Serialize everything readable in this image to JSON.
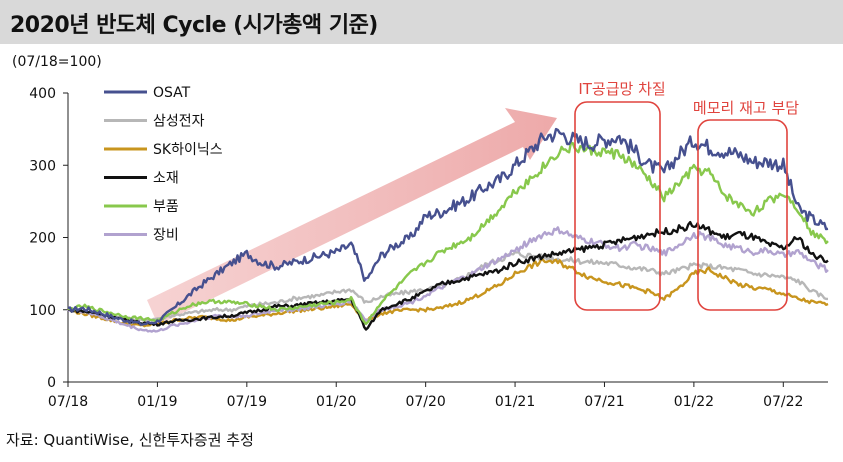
{
  "page": {
    "title": "2020년 반도체 Cycle (시가총액 기준)",
    "unit": "(07/18=100)",
    "source": "자료: QuantiWise, 신한투자증권 추정"
  },
  "chart_data": {
    "type": "line",
    "x_ticks": [
      "07/18",
      "01/19",
      "07/19",
      "01/20",
      "07/20",
      "01/21",
      "07/21",
      "01/22",
      "07/22"
    ],
    "x_range": [
      "2018-07",
      "2022-10"
    ],
    "ylim": [
      0,
      400
    ],
    "y_ticks": [
      0,
      100,
      200,
      300,
      400
    ],
    "grid": false,
    "legend_position": "top-left",
    "x": [
      "2018-07",
      "2018-08",
      "2018-09",
      "2018-10",
      "2018-11",
      "2018-12",
      "2019-01",
      "2019-02",
      "2019-03",
      "2019-04",
      "2019-05",
      "2019-06",
      "2019-07",
      "2019-08",
      "2019-09",
      "2019-10",
      "2019-11",
      "2019-12",
      "2020-01",
      "2020-02",
      "2020-03",
      "2020-04",
      "2020-05",
      "2020-06",
      "2020-07",
      "2020-08",
      "2020-09",
      "2020-10",
      "2020-11",
      "2020-12",
      "2021-01",
      "2021-02",
      "2021-03",
      "2021-04",
      "2021-05",
      "2021-06",
      "2021-07",
      "2021-08",
      "2021-09",
      "2021-10",
      "2021-11",
      "2021-12",
      "2022-01",
      "2022-02",
      "2022-03",
      "2022-04",
      "2022-05",
      "2022-06",
      "2022-07",
      "2022-08",
      "2022-09",
      "2022-10"
    ],
    "series": [
      {
        "name": "OSAT",
        "color": "#46508f",
        "values": [
          100,
          102,
          97,
          90,
          85,
          80,
          84,
          100,
          118,
          135,
          150,
          165,
          178,
          165,
          160,
          165,
          170,
          175,
          180,
          190,
          140,
          175,
          190,
          200,
          230,
          235,
          245,
          255,
          270,
          280,
          300,
          320,
          340,
          345,
          335,
          330,
          335,
          340,
          320,
          300,
          290,
          315,
          335,
          325,
          320,
          315,
          305,
          305,
          300,
          240,
          225,
          212
        ]
      },
      {
        "name": "삼성전자",
        "color": "#b7b7b7",
        "values": [
          100,
          98,
          95,
          90,
          88,
          85,
          88,
          92,
          95,
          98,
          100,
          100,
          105,
          108,
          110,
          115,
          118,
          120,
          125,
          128,
          110,
          118,
          122,
          125,
          128,
          132,
          140,
          150,
          162,
          170,
          178,
          175,
          172,
          170,
          168,
          166,
          165,
          162,
          158,
          155,
          150,
          155,
          162,
          160,
          158,
          155,
          150,
          148,
          145,
          140,
          125,
          115
        ]
      },
      {
        "name": "SK하이닉스",
        "color": "#c8951e",
        "values": [
          100,
          95,
          90,
          85,
          80,
          78,
          80,
          85,
          88,
          90,
          88,
          85,
          90,
          92,
          95,
          98,
          100,
          102,
          105,
          108,
          85,
          95,
          98,
          100,
          100,
          102,
          108,
          115,
          125,
          135,
          150,
          160,
          168,
          165,
          155,
          145,
          140,
          135,
          130,
          125,
          115,
          130,
          150,
          155,
          145,
          135,
          130,
          128,
          122,
          115,
          110,
          108
        ]
      },
      {
        "name": "소재",
        "color": "#111111",
        "values": [
          100,
          98,
          95,
          90,
          85,
          82,
          80,
          84,
          86,
          88,
          90,
          92,
          96,
          100,
          105,
          105,
          108,
          110,
          112,
          115,
          72,
          100,
          108,
          115,
          125,
          135,
          140,
          145,
          150,
          155,
          165,
          170,
          175,
          178,
          182,
          186,
          190,
          195,
          200,
          205,
          208,
          212,
          218,
          210,
          200,
          205,
          200,
          190,
          185,
          200,
          175,
          168
        ]
      },
      {
        "name": "부품",
        "color": "#88c84c",
        "values": [
          100,
          105,
          100,
          95,
          90,
          88,
          85,
          95,
          105,
          110,
          112,
          110,
          108,
          105,
          100,
          102,
          105,
          108,
          110,
          115,
          80,
          110,
          130,
          150,
          165,
          180,
          190,
          200,
          220,
          240,
          265,
          280,
          300,
          320,
          325,
          320,
          318,
          315,
          300,
          280,
          255,
          275,
          295,
          290,
          260,
          245,
          235,
          250,
          262,
          240,
          205,
          195
        ]
      },
      {
        "name": "장비",
        "color": "#b1a2cf",
        "values": [
          100,
          98,
          92,
          85,
          78,
          72,
          70,
          78,
          82,
          88,
          92,
          90,
          92,
          95,
          100,
          100,
          102,
          105,
          108,
          112,
          85,
          100,
          105,
          110,
          120,
          130,
          140,
          148,
          160,
          170,
          182,
          195,
          205,
          210,
          200,
          195,
          190,
          185,
          190,
          185,
          178,
          190,
          205,
          200,
          190,
          185,
          180,
          182,
          175,
          180,
          165,
          155
        ]
      }
    ],
    "annotations": [
      {
        "text": "IT공급망 차질"
      },
      {
        "text": "메모리 재고 부담"
      }
    ]
  }
}
